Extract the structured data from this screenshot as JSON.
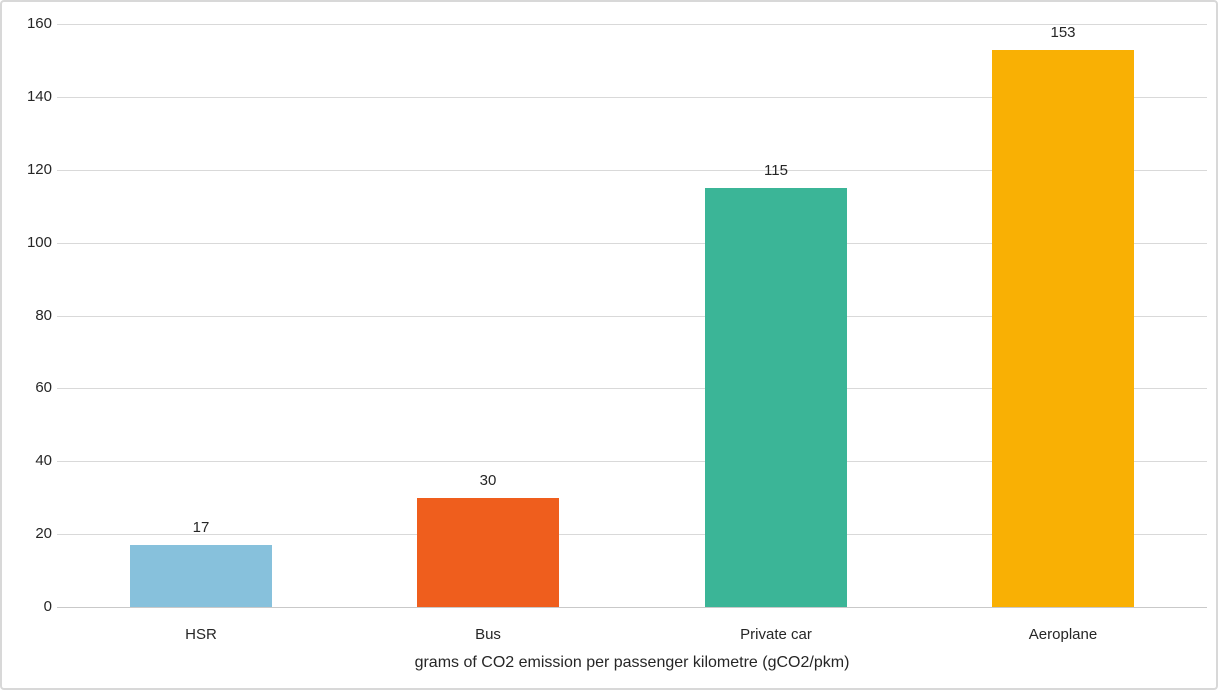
{
  "chart_data": {
    "type": "bar",
    "categories": [
      "HSR",
      "Bus",
      "Private car",
      "Aeroplane"
    ],
    "values": [
      17,
      30,
      115,
      153
    ],
    "bar_colors": [
      "#87C1DC",
      "#EF5E1D",
      "#3BB597",
      "#F9B004"
    ],
    "value_labels": [
      "17",
      "30",
      "115",
      "153"
    ],
    "title": "",
    "xlabel": "grams of CO2 emission per passenger kilometre (gCO2/pkm)",
    "ylabel": "",
    "ylim": [
      0,
      160
    ],
    "yticks": [
      0,
      20,
      40,
      60,
      80,
      100,
      120,
      140,
      160
    ],
    "grid": "horizontal",
    "legend": "none",
    "gridline_color": "#D9D9D9",
    "axis_line_color": "#C9C9C9",
    "text_color": "#262626",
    "background_color": "#FFFFFF",
    "border_color": "#D8D8D8"
  }
}
